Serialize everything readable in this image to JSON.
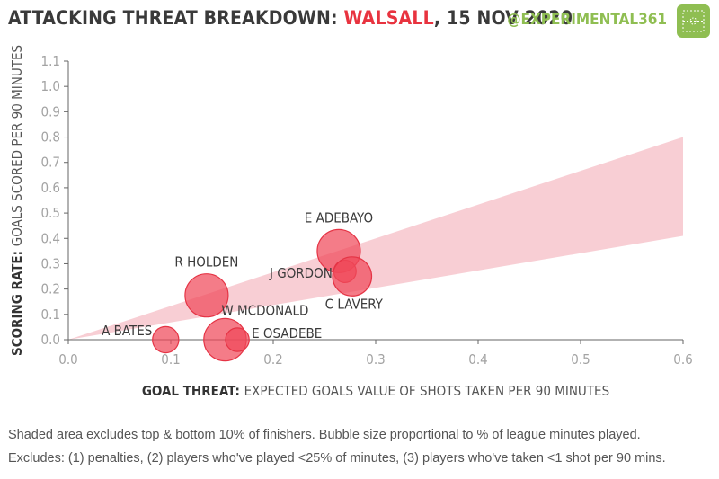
{
  "title": {
    "prefix": "ATTACKING THREAT BREAKDOWN:",
    "team": "WALSALL",
    "suffix": ", 15 NOV 2020"
  },
  "handle": "@EXPERIMENTAL361",
  "footer": {
    "line1": "Shaded area excludes top & bottom 10% of finishers. Bubble size proportional to % of league minutes played.",
    "line2": "Excludes: (1) penalties, (2) players who've played <25% of minutes, (3) players who've taken <1 shot per 90 mins."
  },
  "colors": {
    "accent": "#e8333f",
    "brand": "#8fbe52",
    "band": "#f7c6cc",
    "bubble": "#f0495a"
  },
  "chart_data": {
    "type": "scatter",
    "xlabel_bold": "GOAL THREAT:",
    "xlabel_rest": "EXPECTED GOALS VALUE OF SHOTS TAKEN PER 90 MINUTES",
    "ylabel_bold": "SCORING RATE:",
    "ylabel_rest": "GOALS SCORED PER 90 MINUTES",
    "xlim": [
      0,
      0.6
    ],
    "ylim": [
      0,
      1.1
    ],
    "xticks": [
      "0.0",
      "0.1",
      "0.2",
      "0.3",
      "0.4",
      "0.5",
      "0.6"
    ],
    "yticks": [
      "0.0",
      "0.1",
      "0.2",
      "0.3",
      "0.4",
      "0.5",
      "0.6",
      "0.7",
      "0.8",
      "0.9",
      "1.0",
      "1.1"
    ],
    "band": {
      "upper_at_xmax": 0.8,
      "lower_at_xmax": 0.41
    },
    "points": [
      {
        "label": "E ADEBAYO",
        "x": 0.264,
        "y": 0.35,
        "size": 1.0,
        "label_pos": "above"
      },
      {
        "label": "J GORDON",
        "x": 0.27,
        "y": 0.27,
        "size": 0.27,
        "label_pos": "left"
      },
      {
        "label": "C LAVERY",
        "x": 0.277,
        "y": 0.25,
        "size": 0.82,
        "label_pos": "below"
      },
      {
        "label": "R HOLDEN",
        "x": 0.135,
        "y": 0.175,
        "size": 1.0,
        "label_pos": "above"
      },
      {
        "label": "W MCDONALD",
        "x": 0.153,
        "y": 0.0,
        "size": 0.97,
        "label_pos": "above-right"
      },
      {
        "label": "E OSADEBE",
        "x": 0.165,
        "y": 0.0,
        "size": 0.3,
        "label_pos": "right"
      },
      {
        "label": "A BATES",
        "x": 0.095,
        "y": 0.0,
        "size": 0.37,
        "label_pos": "above-left"
      }
    ]
  }
}
